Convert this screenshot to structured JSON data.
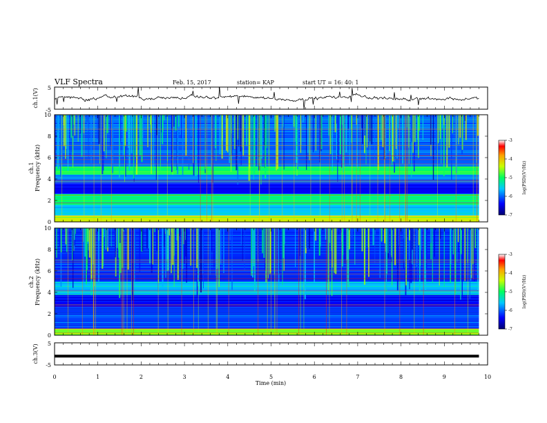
{
  "header": {
    "title": "VLF Spectra",
    "date": "Feb. 15, 2017",
    "station": "station= KAP",
    "start": "start  UT =   16: 40: 1"
  },
  "chart_data": {
    "type": "heatmap",
    "x_axis": {
      "label": "Time  (min)",
      "range": [
        0,
        10
      ],
      "ticks": [
        0,
        1,
        2,
        3,
        4,
        5,
        6,
        7,
        8,
        9,
        10
      ],
      "tick_labels": [
        "0",
        "1",
        "2",
        "3",
        "4",
        "5",
        "6",
        "7",
        "8",
        "9",
        "10"
      ]
    },
    "panels": [
      {
        "id": "ch1-waveform",
        "kind": "line",
        "ylabel": "ch.1(V)",
        "ylim": [
          -5,
          5
        ],
        "tick_labels": [
          "5",
          "-5"
        ]
      },
      {
        "id": "ch1-spectrogram",
        "kind": "heatmap",
        "ylabel_line1": "ch.1",
        "ylabel_line2": "Frequency  (kHz)",
        "ylim": [
          0,
          10
        ],
        "tick_labels": [
          "0",
          "2",
          "4",
          "6",
          "8",
          "10"
        ],
        "colorbar": {
          "label": "log(PSD)(V²/Hz)",
          "range": [
            -7,
            -3
          ],
          "tick_labels": [
            "-3",
            "-4",
            "-5",
            "-6",
            "-7"
          ]
        },
        "background_bands_khz": [
          {
            "from": 0.0,
            "to": 0.6,
            "level": -4.3
          },
          {
            "from": 0.6,
            "to": 1.6,
            "level": -5.6
          },
          {
            "from": 1.6,
            "to": 2.6,
            "level": -5.0
          },
          {
            "from": 2.6,
            "to": 3.6,
            "level": -6.4
          },
          {
            "from": 3.6,
            "to": 4.4,
            "level": -5.9
          },
          {
            "from": 4.4,
            "to": 5.2,
            "level": -5.0
          },
          {
            "from": 5.2,
            "to": 10.0,
            "level": -6.0
          }
        ]
      },
      {
        "id": "ch2-spectrogram",
        "kind": "heatmap",
        "ylabel_line1": "ch.2",
        "ylabel_line2": "Frequency  (kHz)",
        "ylim": [
          0,
          10
        ],
        "tick_labels": [
          "0",
          "2",
          "4",
          "6",
          "8",
          "10"
        ],
        "colorbar": {
          "label": "log(PSD)(V²/Hz)",
          "range": [
            -7,
            -3
          ],
          "tick_labels": [
            "-3",
            "-4",
            "-5",
            "-6",
            "-7"
          ]
        },
        "background_bands_khz": [
          {
            "from": 0.0,
            "to": 0.6,
            "level": -4.6
          },
          {
            "from": 0.6,
            "to": 2.6,
            "level": -6.1
          },
          {
            "from": 2.6,
            "to": 3.8,
            "level": -6.4
          },
          {
            "from": 3.8,
            "to": 5.0,
            "level": -5.6
          },
          {
            "from": 5.0,
            "to": 10.0,
            "level": -6.2
          }
        ]
      },
      {
        "id": "ch3-waveform",
        "kind": "line",
        "ylabel": "ch.3(V)",
        "ylim": [
          -5,
          5
        ],
        "tick_labels": [
          "5",
          "-5"
        ],
        "constant_value": -1
      }
    ],
    "data_end_min": 9.8
  }
}
